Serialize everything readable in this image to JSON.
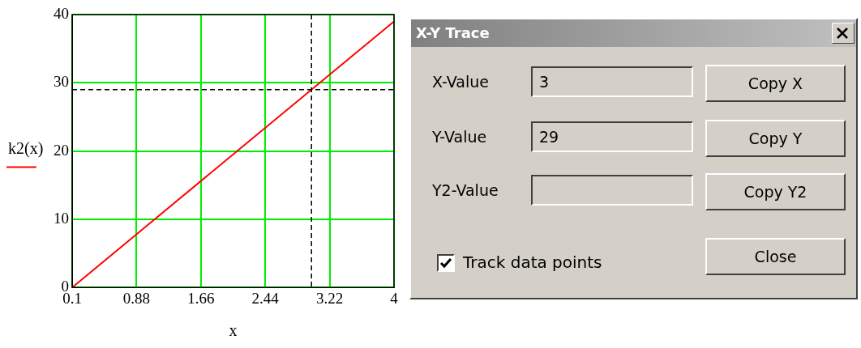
{
  "chart_data": [
    {
      "type": "line",
      "xlabel": "x",
      "ylabel": "k2(x)",
      "series": [
        {
          "color": "#ff0000",
          "x": [
            0.1,
            4
          ],
          "values": [
            0,
            39
          ]
        }
      ],
      "xlim": [
        0.1,
        4
      ],
      "xticks": [
        0.1,
        0.88,
        1.66,
        2.44,
        3.22,
        4
      ],
      "ylim": [
        0,
        40
      ],
      "yticks": [
        0,
        10,
        20,
        30,
        40
      ],
      "grid": true,
      "legend": false,
      "marker": "none",
      "line_style": "solid",
      "ref_lines": [
        {
          "axis": "x",
          "value": 3,
          "color": "#000000",
          "line_style": "dashed"
        },
        {
          "axis": "y",
          "value": 29,
          "color": "#000000",
          "line_style": "dashed"
        }
      ]
    },
    {
      "type": "other",
      "title": "X-Y Trace",
      "annotations": [
        "X-Value",
        "3",
        "Copy X",
        "Y-Value",
        "29",
        "Copy Y",
        "Y2-Value",
        "Copy Y2",
        "Track data points",
        "Close"
      ]
    }
  ]
}
